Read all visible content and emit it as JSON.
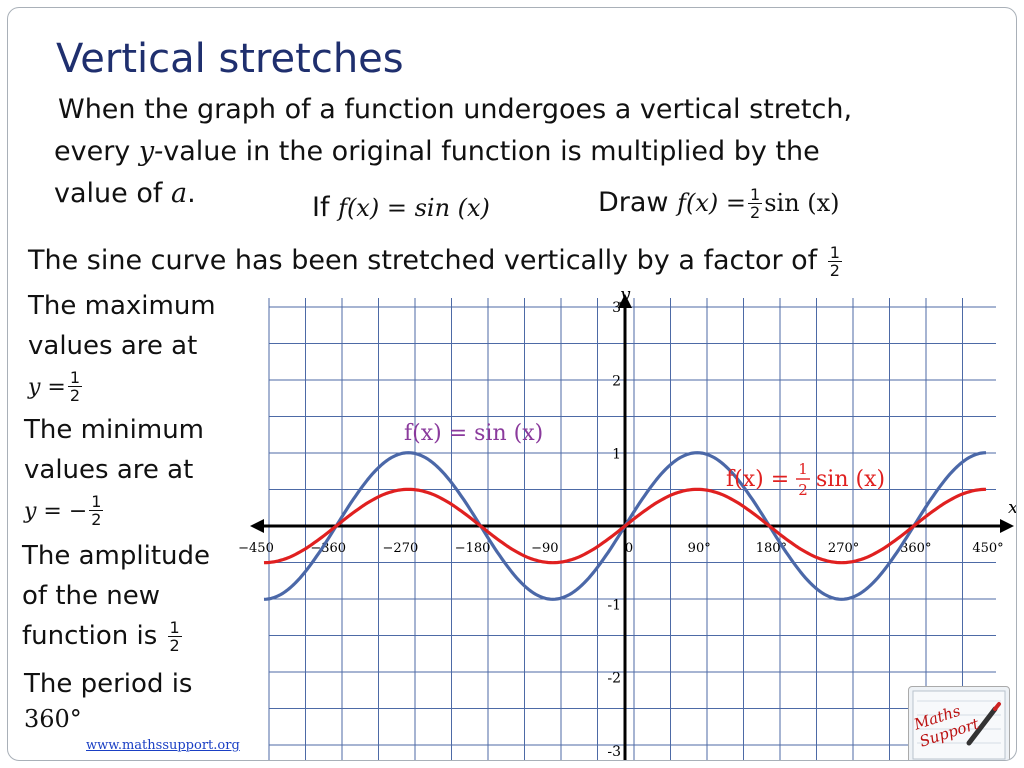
{
  "slide": {
    "title": "Vertical stretches",
    "intro": {
      "line1": "When the graph of a function undergoes a vertical stretch,",
      "line2_a": "every ",
      "line2_var": "y-",
      "line2_b": "value in the original function is multiplied by the",
      "line3_a": "value of ",
      "line3_var": "a",
      "line3_b": "."
    },
    "given": {
      "if_word": "If",
      "expr": "f(x) = sin (x)"
    },
    "draw": {
      "draw_word": "Draw",
      "lhs": "f(x) =",
      "num": "1",
      "den": "2",
      "rhs": "sin (x)"
    },
    "statement": {
      "text": "The sine curve has been stretched vertically by a factor of",
      "num": "1",
      "den": "2"
    },
    "max_note": {
      "line1": "The maximum",
      "line2": "values are at",
      "lhs": "y =",
      "num": "1",
      "den": "2"
    },
    "min_note": {
      "line1": "The minimum",
      "line2": "values are at",
      "lhs": "y = −",
      "num": "1",
      "den": "2"
    },
    "amplitude_note": {
      "line1": "The amplitude",
      "line2": "of the new",
      "line3": "function is",
      "num": "1",
      "den": "2"
    },
    "period_note": {
      "line1": "The period is",
      "value": "360°"
    },
    "website": "www.mathssupport.org",
    "logo_text": "Maths Support"
  },
  "chart_data": {
    "type": "line",
    "x_axis_label": "x",
    "y_axis_label": "y",
    "xlim": [
      -450,
      450
    ],
    "ylim": [
      -3,
      3
    ],
    "x_ticks": [
      {
        "value": -450,
        "label": "−450"
      },
      {
        "value": -360,
        "label": "−360"
      },
      {
        "value": -270,
        "label": "−270"
      },
      {
        "value": -180,
        "label": "−180"
      },
      {
        "value": -90,
        "label": "−90"
      },
      {
        "value": 0,
        "label": "0"
      },
      {
        "value": 90,
        "label": "90°"
      },
      {
        "value": 180,
        "label": "180°"
      },
      {
        "value": 270,
        "label": "270°"
      },
      {
        "value": 360,
        "label": "360°"
      },
      {
        "value": 450,
        "label": "450°"
      }
    ],
    "y_ticks": [
      {
        "value": 3,
        "label": "3"
      },
      {
        "value": 2,
        "label": "2"
      },
      {
        "value": 1,
        "label": "1"
      },
      {
        "value": -1,
        "label": "-1"
      },
      {
        "value": -2,
        "label": "-2"
      },
      {
        "value": -3,
        "label": "-3"
      }
    ],
    "series": [
      {
        "label": "f(x) = sin (x)",
        "color": "#4b68a8",
        "amplitude": 1,
        "function": "sin"
      },
      {
        "label_lhs": "f(x) =",
        "label_num": "1",
        "label_den": "2",
        "label_rhs": "sin (x)",
        "color": "#e02020",
        "amplitude": 0.5,
        "function": "sin"
      }
    ],
    "grid": true
  }
}
